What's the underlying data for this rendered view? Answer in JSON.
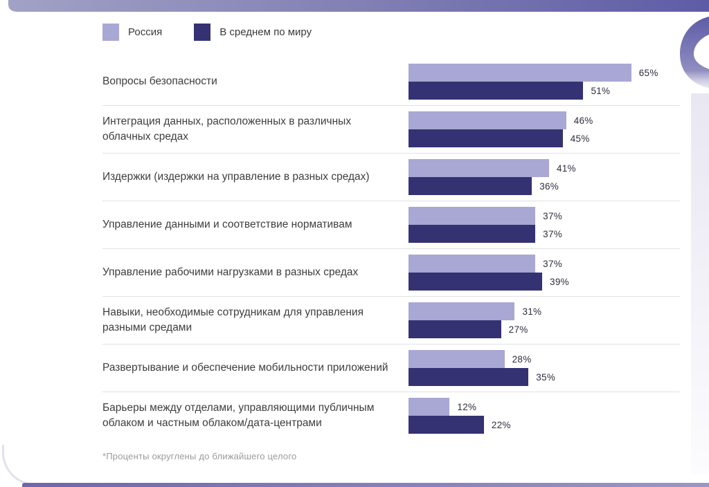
{
  "legend": {
    "items": [
      {
        "label": "Россия",
        "color": "#a9a7d3"
      },
      {
        "label": "В среднем по миру",
        "color": "#343272"
      }
    ]
  },
  "chart_data": {
    "type": "bar",
    "orientation": "horizontal",
    "categories": [
      "Вопросы безопасности",
      "Интеграция данных, расположенных в различных облачных средах",
      "Издержки (издержки на управление в разных средах)",
      "Управление данными и соответствие нормативам",
      "Управление рабочими нагрузками в разных средах",
      "Навыки, необходимые сотрудникам для управления разными средами",
      "Развертывание и обеспечение мобильности приложений",
      "Барьеры между отделами, управляющими публичным облаком и частным облаком/дата-центрами"
    ],
    "series": [
      {
        "name": "Россия",
        "color": "#a9a7d3",
        "values": [
          65,
          46,
          41,
          37,
          37,
          31,
          28,
          12
        ]
      },
      {
        "name": "В среднем по миру",
        "color": "#343272",
        "values": [
          51,
          45,
          36,
          37,
          39,
          27,
          35,
          22
        ]
      }
    ],
    "value_suffix": "%",
    "xlim": [
      0,
      100
    ],
    "grid": false,
    "legend_position": "top-left",
    "footnote": "*Проценты округлены до ближайшего целого"
  },
  "colors": {
    "brand_light": "#a9a7d3",
    "brand_dark": "#343272",
    "deco_band_start": "#a2a1c6",
    "deco_band_end": "#5e5ca6",
    "separator": "#e1e1e6"
  }
}
